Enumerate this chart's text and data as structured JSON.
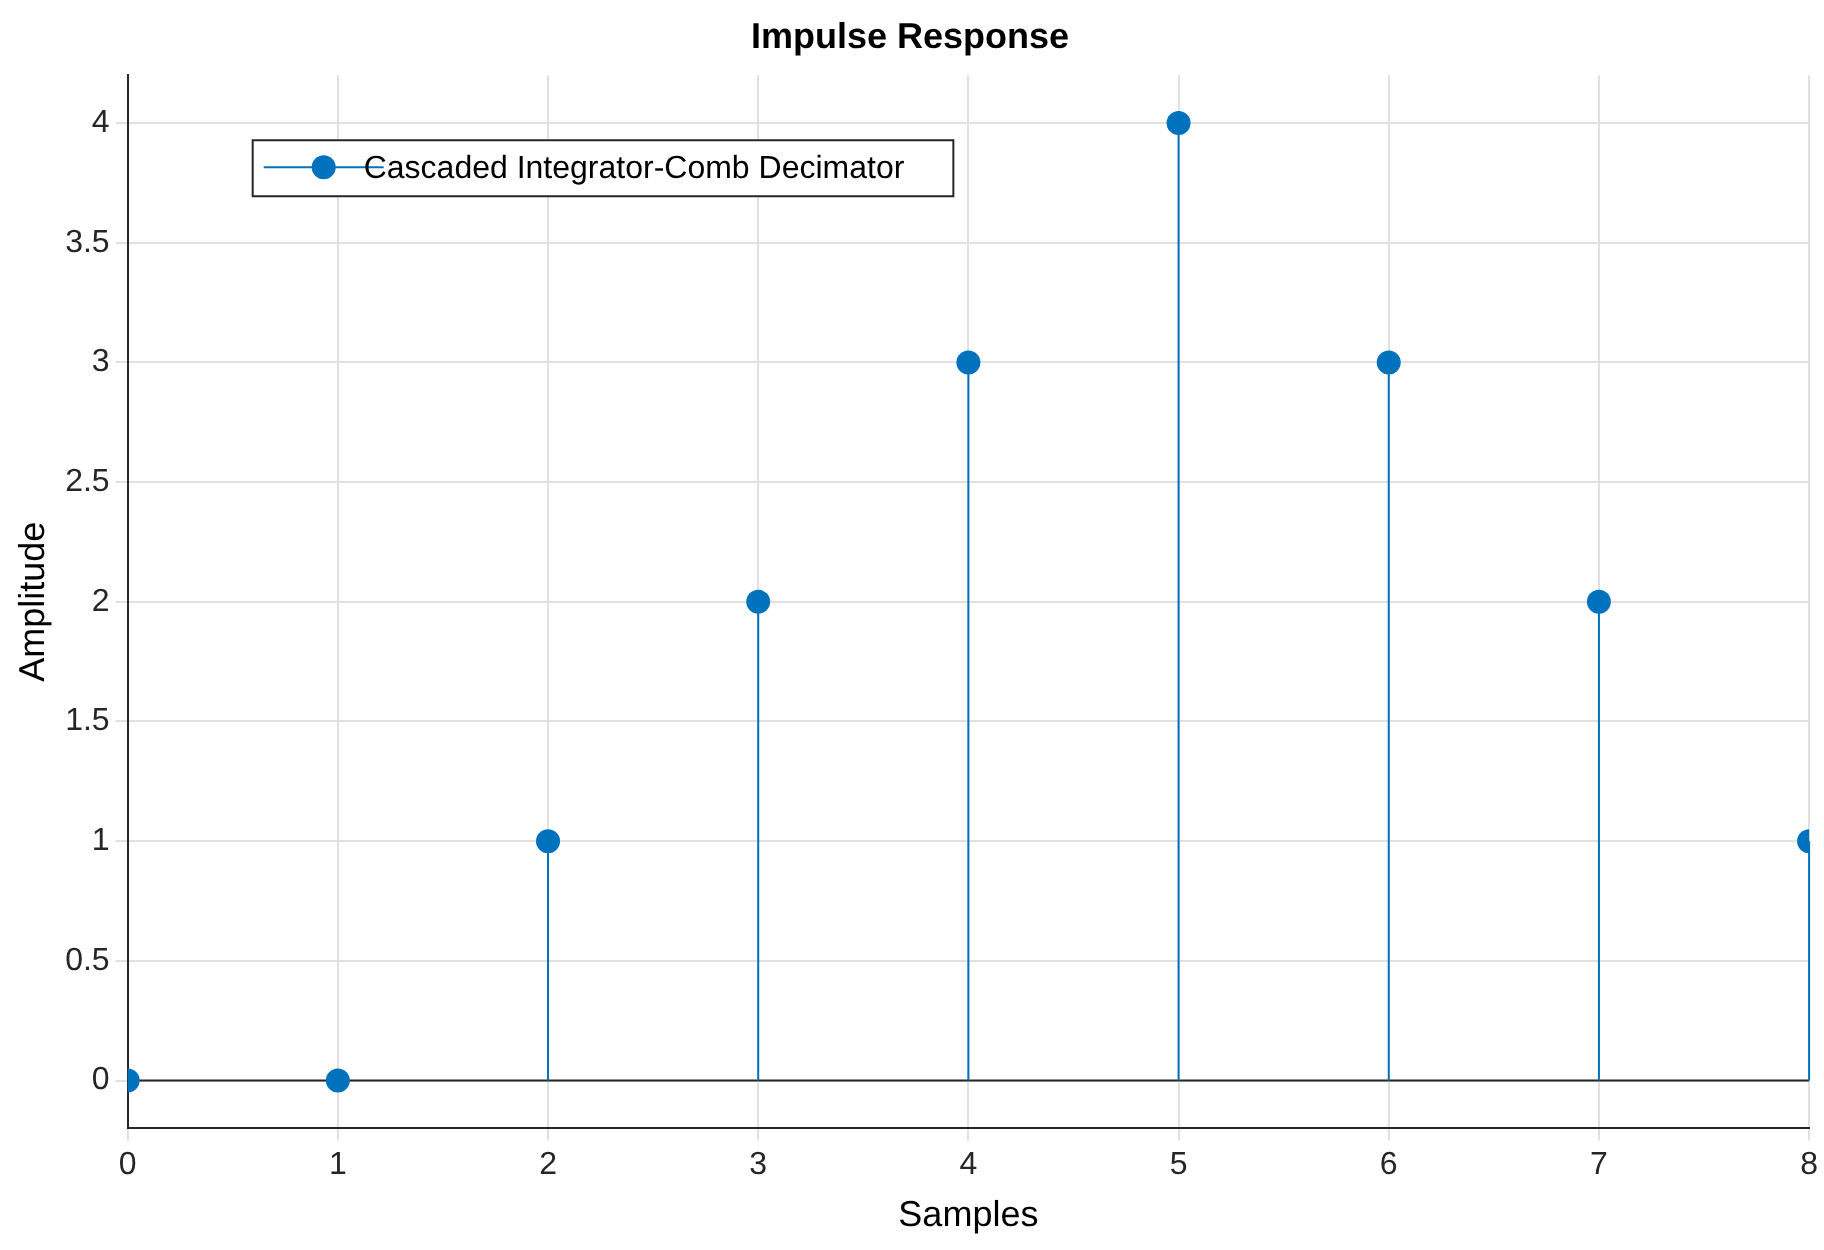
{
  "chart_data": {
    "type": "lollipop",
    "title": "Impulse Response",
    "xlabel": "Samples",
    "ylabel": "Amplitude",
    "x": [
      0,
      1,
      2,
      3,
      4,
      5,
      6,
      7,
      8
    ],
    "series": [
      {
        "name": "Cascaded Integrator-Comb Decimator",
        "color": "#0072bd",
        "values": [
          0,
          0,
          1,
          2,
          3,
          4,
          3,
          2,
          1
        ]
      }
    ],
    "xlim": [
      0,
      8
    ],
    "xticks": [
      0,
      1,
      2,
      3,
      4,
      5,
      6,
      7,
      8
    ],
    "ylim": [
      -0.2,
      4.2
    ],
    "yticks": [
      0,
      0.5,
      1,
      1.5,
      2,
      2.5,
      3,
      3.5,
      4
    ],
    "ref_lines": [
      {
        "axis": "y",
        "value": 0,
        "color": "#262626"
      }
    ],
    "grid": true,
    "legend": "top left",
    "marker": "circle"
  }
}
